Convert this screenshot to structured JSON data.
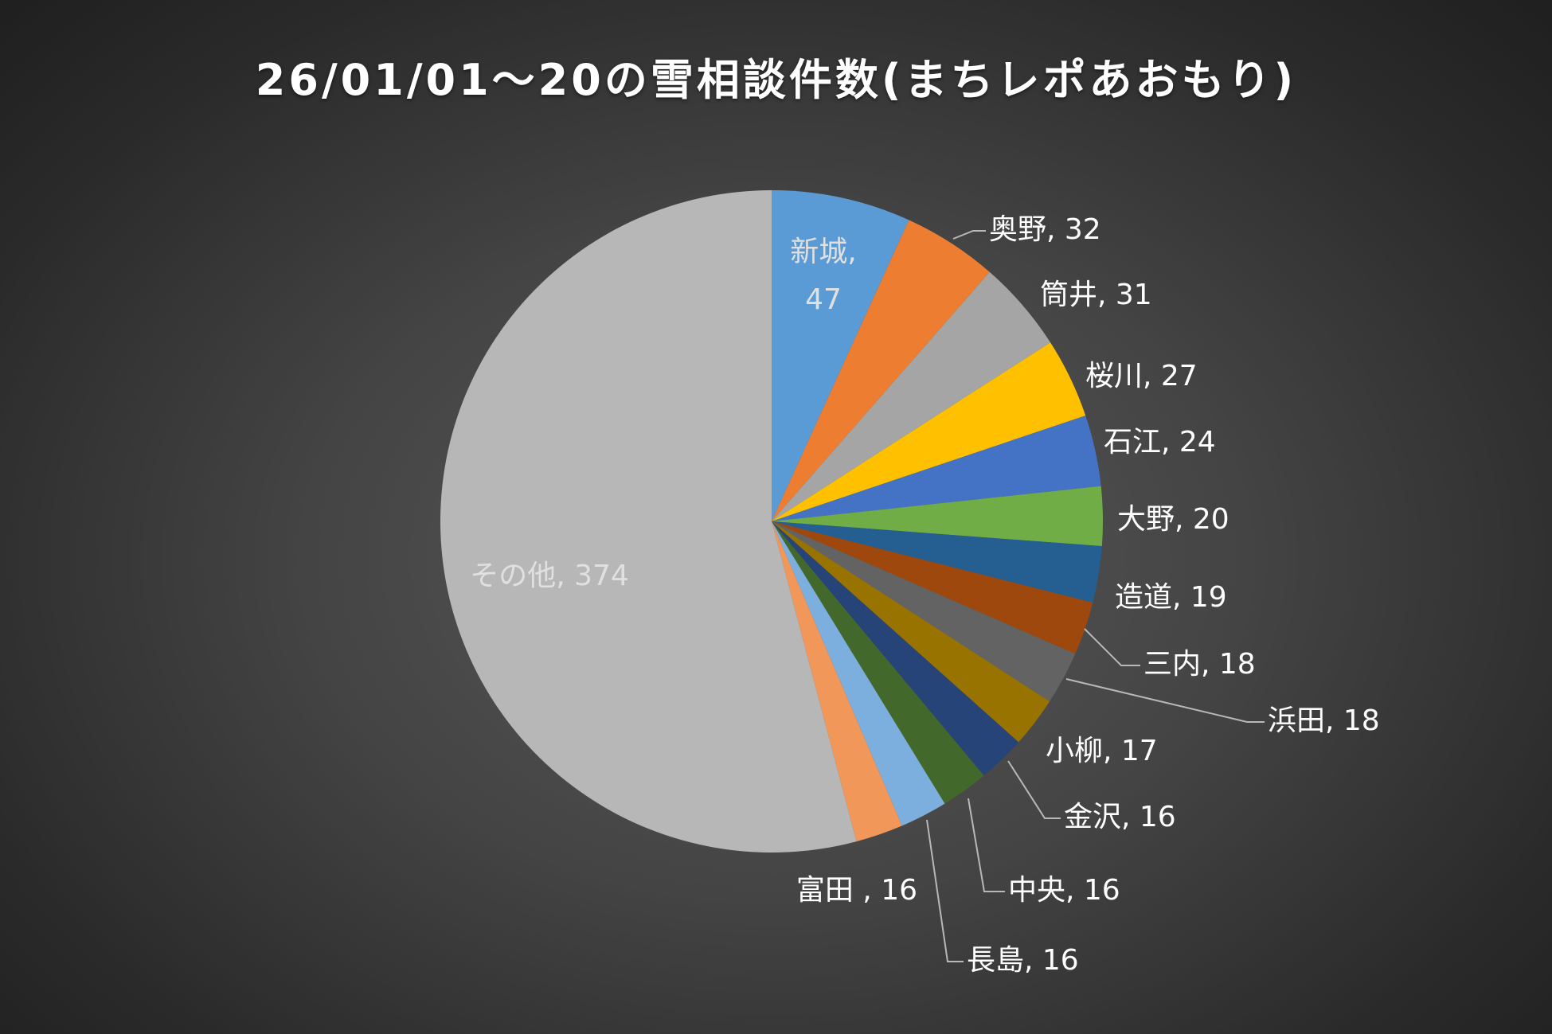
{
  "chart_data": {
    "type": "pie",
    "title": "26/01/01～20の雪相談件数(まちレポあおもり)",
    "start_angle": "12 o'clock, clockwise",
    "series": [
      {
        "values": [
          {
            "label": "新城",
            "value": 47,
            "color": "#5b9bd5",
            "label_text": [
              "新城,",
              "47"
            ]
          },
          {
            "label": "奥野",
            "value": 32,
            "color": "#ed7d31",
            "label_text": [
              "奥野, 32"
            ]
          },
          {
            "label": "筒井",
            "value": 31,
            "color": "#a5a5a5",
            "label_text": [
              "筒井, 31"
            ]
          },
          {
            "label": "桜川",
            "value": 27,
            "color": "#ffc000",
            "label_text": [
              "桜川, 27"
            ]
          },
          {
            "label": "石江",
            "value": 24,
            "color": "#4472c4",
            "label_text": [
              "石江, 24"
            ]
          },
          {
            "label": "大野",
            "value": 20,
            "color": "#70ad47",
            "label_text": [
              "大野, 20"
            ]
          },
          {
            "label": "造道",
            "value": 19,
            "color": "#255e91",
            "label_text": [
              "造道, 19"
            ]
          },
          {
            "label": "三内",
            "value": 18,
            "color": "#9e480e",
            "label_text": [
              "三内, 18"
            ]
          },
          {
            "label": "浜田",
            "value": 18,
            "color": "#636363",
            "label_text": [
              "浜田, 18"
            ]
          },
          {
            "label": "小柳",
            "value": 17,
            "color": "#997300",
            "label_text": [
              "小柳, 17"
            ]
          },
          {
            "label": "金沢",
            "value": 16,
            "color": "#264478",
            "label_text": [
              "金沢, 16"
            ]
          },
          {
            "label": "中央",
            "value": 16,
            "color": "#43682b",
            "label_text": [
              "中央, 16"
            ]
          },
          {
            "label": "長島",
            "value": 16,
            "color": "#7cafdd",
            "label_text": [
              "長島, 16"
            ]
          },
          {
            "label": "富田",
            "value": 16,
            "color": "#f1975a",
            "label_text": [
              "富田 , 16"
            ]
          },
          {
            "label": "その他",
            "value": 374,
            "color": "#b7b7b7",
            "label_text": [
              "その他, 374"
            ]
          }
        ]
      }
    ],
    "label_color": "#ffffff",
    "inside_label_color": "#e0e0e0",
    "leader_line_color": "#b8b8b8",
    "legend": "none"
  }
}
